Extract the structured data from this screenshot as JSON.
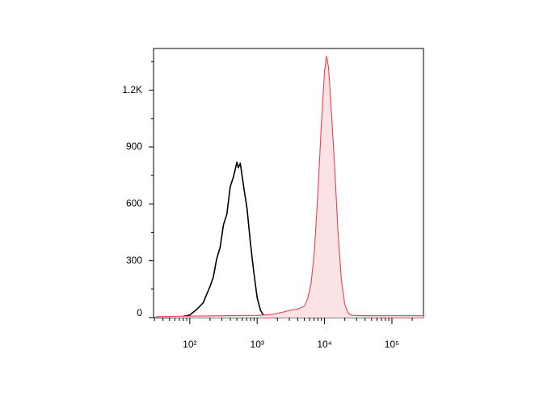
{
  "chart_data": {
    "type": "line",
    "xscale": "log",
    "xlim": [
      29,
      294000
    ],
    "ylim": [
      0,
      1420
    ],
    "xticks": [
      {
        "value": 100,
        "label": "10²"
      },
      {
        "value": 1000,
        "label": "10³"
      },
      {
        "value": 10000,
        "label": "10⁴"
      },
      {
        "value": 100000,
        "label": "10⁵"
      }
    ],
    "xminorticks": [
      30,
      40,
      50,
      60,
      70,
      80,
      90,
      200,
      300,
      400,
      500,
      600,
      700,
      800,
      900,
      2000,
      3000,
      4000,
      5000,
      6000,
      7000,
      8000,
      9000,
      20000,
      30000,
      40000,
      50000,
      60000,
      70000,
      80000,
      90000,
      200000
    ],
    "yticks": [
      0,
      300,
      600,
      900,
      {
        "value": 1200,
        "label": "1.2K"
      }
    ],
    "yminorticks": [
      150,
      450,
      750,
      1050,
      1350
    ],
    "series": [
      {
        "color": "#000000",
        "fill": false,
        "x": [
          32,
          50,
          63,
          79,
          100,
          126,
          158,
          200,
          224,
          251,
          282,
          316,
          355,
          398,
          447,
          501,
          525,
          562,
          631,
          708,
          794,
          891,
          1000,
          1122,
          1259,
          1585,
          1995
        ],
        "values": [
          0,
          0,
          2,
          6,
          14,
          42,
          78,
          165,
          215,
          310,
          370,
          490,
          545,
          690,
          745,
          820,
          790,
          815,
          690,
          575,
          395,
          240,
          105,
          38,
          10,
          2,
          0
        ]
      },
      {
        "color": "#e8414f",
        "fill": true,
        "fill_color": "#fbe3e5",
        "x": [
          32,
          100,
          316,
          1000,
          1585,
          2512,
          3162,
          3981,
          5012,
          5623,
          6310,
          7079,
          7943,
          8913,
          10000,
          10715,
          11482,
          12589,
          14125,
          15849,
          17783,
          19953,
          22387,
          25119,
          39811,
          100000,
          294000
        ],
        "values": [
          5,
          8,
          10,
          12,
          15,
          30,
          40,
          45,
          60,
          100,
          180,
          350,
          650,
          1000,
          1300,
          1380,
          1320,
          1100,
          800,
          450,
          200,
          70,
          25,
          12,
          10,
          10,
          10
        ]
      }
    ]
  }
}
